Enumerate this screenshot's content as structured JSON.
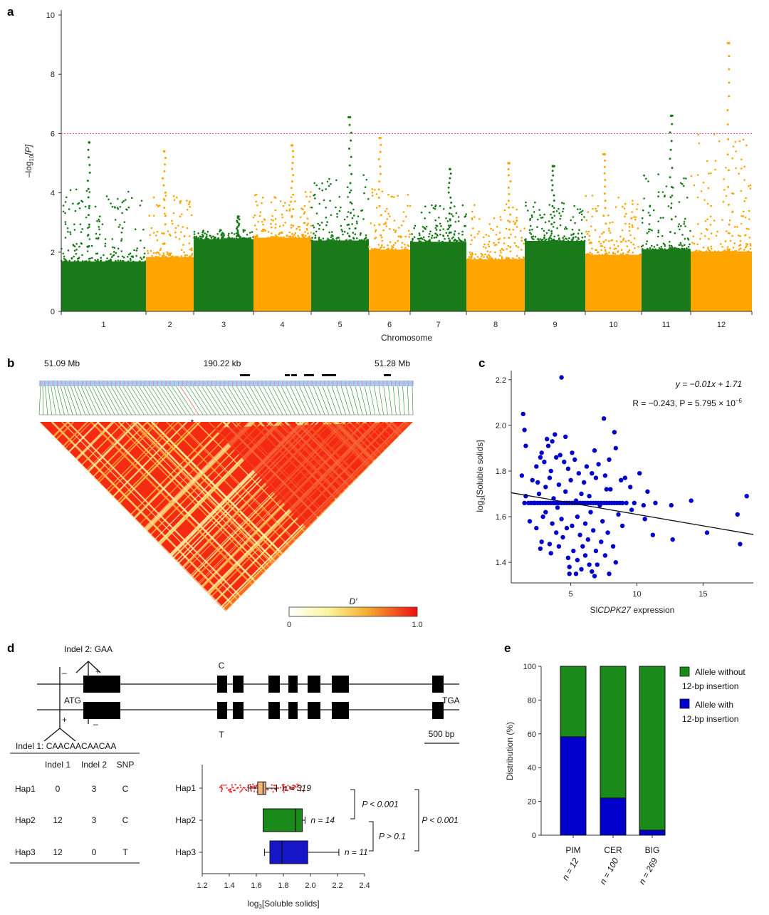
{
  "panels": {
    "a": "a",
    "b": "b",
    "c": "c",
    "d": "d",
    "e": "e"
  },
  "colors": {
    "green": "#1a7a1a",
    "orange": "#ffa500",
    "blue": "#0000cd",
    "threshold": "#e0506a",
    "pim": "#e8b87a"
  },
  "chart_data": [
    {
      "id": "manhattan",
      "type": "scatter",
      "title": "",
      "xlabel": "Chromosome",
      "ylabel_main": "–log",
      "ylabel_sub": "10",
      "ylabel_tail": "[P]",
      "ylim": [
        0,
        10
      ],
      "yticks": [
        "0",
        "2",
        "4",
        "6",
        "8",
        "10"
      ],
      "threshold": 6,
      "chromosomes": [
        "1",
        "2",
        "3",
        "4",
        "5",
        "6",
        "7",
        "8",
        "9",
        "10",
        "11",
        "12"
      ],
      "chrom_peaks": [
        5.7,
        5.4,
        3.2,
        5.6,
        6.55,
        5.85,
        4.8,
        5.0,
        4.9,
        5.3,
        6.6,
        9.05
      ]
    },
    {
      "id": "ld_heatmap",
      "type": "heatmap",
      "labels": {
        "left": "51.09 Mb",
        "mid": "190.22 kb",
        "right": "51.28 Mb",
        "star": "*"
      },
      "legend_title": "D′",
      "legend_min": "0",
      "legend_max": "1.0"
    },
    {
      "id": "expression_scatter",
      "type": "scatter",
      "xlabel_pre": "Sl",
      "xlabel_italic": "CDPK27",
      "xlabel_post": " expression",
      "ylabel_main": "log",
      "ylabel_sub": "3",
      "ylabel_tail": "[Soluble solids]",
      "xlim": [
        0.5,
        18.8
      ],
      "ylim": [
        1.31,
        2.24
      ],
      "xticks": [
        "5",
        "10",
        "15"
      ],
      "yticks": [
        "1.4",
        "1.6",
        "1.8",
        "2.0",
        "2.2"
      ],
      "regression": {
        "slope": -0.01,
        "intercept": 1.71
      },
      "equation": "y = −0.01x + 1.71",
      "stats_pre": "R = −0.243, P = 5.795 × 10",
      "stats_sup": "−6",
      "points": [
        [
          4.3,
          2.21
        ],
        [
          1.4,
          2.05
        ],
        [
          7.5,
          2.03
        ],
        [
          1.5,
          1.98
        ],
        [
          8.3,
          1.97
        ],
        [
          3.8,
          1.96
        ],
        [
          4.6,
          1.95
        ],
        [
          3.2,
          1.94
        ],
        [
          3.6,
          1.93
        ],
        [
          1.6,
          1.91
        ],
        [
          3.3,
          1.91
        ],
        [
          8.4,
          1.9
        ],
        [
          6.8,
          1.89
        ],
        [
          5.1,
          1.88
        ],
        [
          2.8,
          1.88
        ],
        [
          4.2,
          1.87
        ],
        [
          3.9,
          1.86
        ],
        [
          2.7,
          1.86
        ],
        [
          7.9,
          1.85
        ],
        [
          5.3,
          1.85
        ],
        [
          4.5,
          1.84
        ],
        [
          3.0,
          1.84
        ],
        [
          7.1,
          1.83
        ],
        [
          6.2,
          1.82
        ],
        [
          2.4,
          1.82
        ],
        [
          4.8,
          1.81
        ],
        [
          3.5,
          1.8
        ],
        [
          10.2,
          1.79
        ],
        [
          6.6,
          1.79
        ],
        [
          5.6,
          1.79
        ],
        [
          1.3,
          1.78
        ],
        [
          7.6,
          1.78
        ],
        [
          9.1,
          1.77
        ],
        [
          3.4,
          1.77
        ],
        [
          6.9,
          1.77
        ],
        [
          8.8,
          1.76
        ],
        [
          2.1,
          1.76
        ],
        [
          5.0,
          1.76
        ],
        [
          2.5,
          1.75
        ],
        [
          6.0,
          1.75
        ],
        [
          4.1,
          1.74
        ],
        [
          9.5,
          1.73
        ],
        [
          3.1,
          1.73
        ],
        [
          8.0,
          1.72
        ],
        [
          7.7,
          1.72
        ],
        [
          10.8,
          1.71
        ],
        [
          4.6,
          1.71
        ],
        [
          5.8,
          1.7
        ],
        [
          2.6,
          1.7
        ],
        [
          1.6,
          1.69
        ],
        [
          18.3,
          1.69
        ],
        [
          6.4,
          1.69
        ],
        [
          3.7,
          1.68
        ],
        [
          14.1,
          1.67
        ],
        [
          5.4,
          1.67
        ],
        [
          2.2,
          1.66
        ],
        [
          12.6,
          1.65
        ],
        [
          7.2,
          1.65
        ],
        [
          4.0,
          1.64
        ],
        [
          17.6,
          1.61
        ],
        [
          9.6,
          1.63
        ],
        [
          3.1,
          1.62
        ],
        [
          6.5,
          1.62
        ],
        [
          8.6,
          1.61
        ],
        [
          2.9,
          1.6
        ],
        [
          5.5,
          1.6
        ],
        [
          4.3,
          1.59
        ],
        [
          10.6,
          1.59
        ],
        [
          7.4,
          1.58
        ],
        [
          1.9,
          1.58
        ],
        [
          6.1,
          1.57
        ],
        [
          3.6,
          1.57
        ],
        [
          8.9,
          1.56
        ],
        [
          5.1,
          1.56
        ],
        [
          4.7,
          1.55
        ],
        [
          2.4,
          1.55
        ],
        [
          6.7,
          1.54
        ],
        [
          15.3,
          1.53
        ],
        [
          7.8,
          1.53
        ],
        [
          3.9,
          1.53
        ],
        [
          11.2,
          1.52
        ],
        [
          5.7,
          1.52
        ],
        [
          4.4,
          1.51
        ],
        [
          12.7,
          1.5
        ],
        [
          6.3,
          1.5
        ],
        [
          2.8,
          1.49
        ],
        [
          7.3,
          1.49
        ],
        [
          3.4,
          1.48
        ],
        [
          17.8,
          1.48
        ],
        [
          5.9,
          1.47
        ],
        [
          4.1,
          1.47
        ],
        [
          8.2,
          1.47
        ],
        [
          2.7,
          1.46
        ],
        [
          6.9,
          1.45
        ],
        [
          5.2,
          1.45
        ],
        [
          3.5,
          1.44
        ],
        [
          7.6,
          1.43
        ],
        [
          6.1,
          1.43
        ],
        [
          4.8,
          1.42
        ],
        [
          5.5,
          1.41
        ],
        [
          8.4,
          1.4
        ],
        [
          6.4,
          1.39
        ],
        [
          7.0,
          1.39
        ],
        [
          4.9,
          1.38
        ],
        [
          5.8,
          1.37
        ],
        [
          6.6,
          1.36
        ],
        [
          7.9,
          1.35
        ],
        [
          5.4,
          1.35
        ],
        [
          4.9,
          1.35
        ],
        [
          6.8,
          1.34
        ],
        [
          3.3,
          1.66
        ],
        [
          3.5,
          1.66
        ],
        [
          3.7,
          1.66
        ],
        [
          3.9,
          1.66
        ],
        [
          4.1,
          1.66
        ],
        [
          4.3,
          1.66
        ],
        [
          4.5,
          1.66
        ],
        [
          4.7,
          1.66
        ],
        [
          4.9,
          1.66
        ],
        [
          5.1,
          1.66
        ],
        [
          5.3,
          1.66
        ],
        [
          5.5,
          1.66
        ],
        [
          5.7,
          1.66
        ],
        [
          5.9,
          1.66
        ],
        [
          6.1,
          1.66
        ],
        [
          6.3,
          1.66
        ],
        [
          6.5,
          1.66
        ],
        [
          6.7,
          1.66
        ],
        [
          6.9,
          1.66
        ],
        [
          7.1,
          1.66
        ],
        [
          7.3,
          1.66
        ],
        [
          7.5,
          1.66
        ],
        [
          7.7,
          1.66
        ],
        [
          7.9,
          1.66
        ],
        [
          8.1,
          1.66
        ],
        [
          8.3,
          1.66
        ],
        [
          8.5,
          1.66
        ],
        [
          8.7,
          1.66
        ],
        [
          8.9,
          1.66
        ],
        [
          2.3,
          1.66
        ],
        [
          2.5,
          1.66
        ],
        [
          2.7,
          1.66
        ],
        [
          2.9,
          1.66
        ],
        [
          3.1,
          1.66
        ],
        [
          9.2,
          1.66
        ],
        [
          9.8,
          1.66
        ],
        [
          1.5,
          1.66
        ],
        [
          1.8,
          1.66
        ],
        [
          2.0,
          1.66
        ],
        [
          10.5,
          1.65
        ],
        [
          11.4,
          1.66
        ]
      ]
    },
    {
      "id": "haplotype_boxplot",
      "type": "bar",
      "categories": [
        "Hap1",
        "Hap2",
        "Hap3"
      ],
      "xlabel_main": "log",
      "xlabel_sub": "3",
      "xlabel_tail": "[Soluble solids]",
      "xlim": [
        1.2,
        2.4
      ],
      "xticks": [
        "1.2",
        "1.4",
        "1.6",
        "1.8",
        "2.0",
        "2.2",
        "2.4"
      ],
      "boxes": [
        {
          "name": "Hap1",
          "whisker_low": 1.54,
          "q1": 1.61,
          "median": 1.65,
          "q3": 1.67,
          "whisker_high": 1.75,
          "n": "n = 319",
          "color": "#f2b87a"
        },
        {
          "name": "Hap2",
          "whisker_low": 1.65,
          "q1": 1.65,
          "median": 1.89,
          "q3": 1.94,
          "whisker_high": 1.96,
          "n": "n = 14",
          "color": "#1a8a1a"
        },
        {
          "name": "Hap3",
          "whisker_low": 1.66,
          "q1": 1.7,
          "median": 1.79,
          "q3": 1.98,
          "whisker_high": 2.21,
          "n": "n = 11",
          "color": "#1616c8"
        }
      ],
      "comparisons": [
        {
          "between": [
            "Hap1",
            "Hap2"
          ],
          "label": "P < 0.001"
        },
        {
          "between": [
            "Hap2",
            "Hap3"
          ],
          "label": "P > 0.1"
        },
        {
          "between": [
            "Hap1",
            "Hap3"
          ],
          "label": "P < 0.001"
        }
      ]
    },
    {
      "id": "distribution",
      "type": "bar",
      "categories": [
        "PIM",
        "CER",
        "BIG"
      ],
      "sample_sizes": [
        "n = 12",
        "n = 100",
        "n = 269"
      ],
      "ylabel": "Distribution (%)",
      "ylim": [
        0,
        100
      ],
      "yticks": [
        "0",
        "20",
        "40",
        "60",
        "80",
        "100"
      ],
      "series": [
        {
          "name": "Allele with 12-bp insertion",
          "values": [
            58.3,
            22.0,
            3.0
          ],
          "color": "#0000cd"
        },
        {
          "name": "Allele without 12-bp insertion",
          "values": [
            41.7,
            78.0,
            97.0
          ],
          "color": "#1a8a1a"
        }
      ],
      "legend": [
        {
          "line1": "Allele without",
          "line2": "12-bp insertion",
          "color": "#1a8a1a"
        },
        {
          "line1": "Allele with",
          "line2": "12-bp insertion",
          "color": "#0000cd"
        }
      ]
    }
  ],
  "gene_model": {
    "indel2": "Indel 2: GAA",
    "indel1": "Indel 1: CAACAACAACAA",
    "start": "ATG",
    "stop": "TGA",
    "snp_top": "C",
    "snp_bottom": "T",
    "minus": "–",
    "plus": "+",
    "scale": "500 bp"
  },
  "haplotype_table": {
    "headers": [
      "",
      "Indel 1",
      "Indel 2",
      "SNP"
    ],
    "rows": [
      [
        "Hap1",
        "0",
        "3",
        "C"
      ],
      [
        "Hap2",
        "12",
        "3",
        "C"
      ],
      [
        "Hap3",
        "12",
        "0",
        "T"
      ]
    ]
  }
}
